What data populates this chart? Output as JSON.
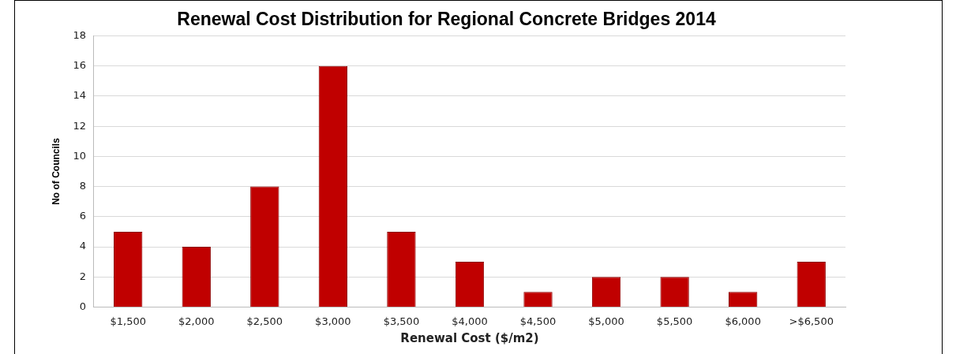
{
  "chart_data": {
    "type": "bar",
    "title": "Renewal Cost Distribution for Regional Concrete Bridges 2014",
    "xlabel": "Renewal Cost ($/m2)",
    "ylabel": "No of Councils",
    "categories": [
      "$1,500",
      "$2,000",
      "$2,500",
      "$3,000",
      "$3,500",
      "$4,000",
      "$4,500",
      "$5,000",
      "$5,500",
      "$6,000",
      ">$6,500"
    ],
    "values": [
      5,
      4,
      8,
      16,
      5,
      3,
      1,
      2,
      2,
      1,
      3
    ],
    "color": "#c00000",
    "ylim": [
      0,
      18
    ],
    "yticks": [
      0,
      2,
      4,
      6,
      8,
      10,
      12,
      14,
      16,
      18
    ],
    "grid": "y",
    "legend": false
  }
}
